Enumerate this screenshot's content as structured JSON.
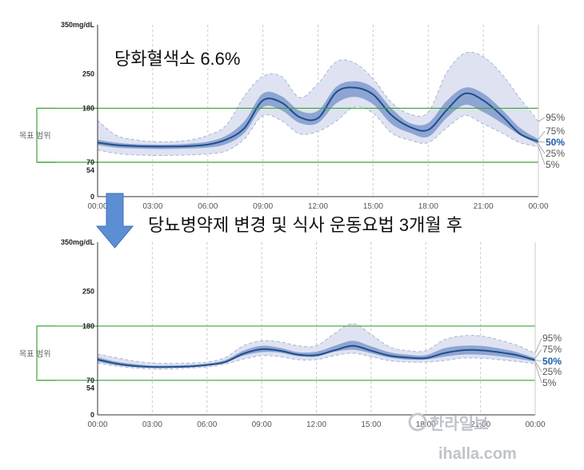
{
  "headline_top": "당화혈색소 6.6%",
  "headline_mid": "당뇨병약제 변경 및 식사 운동요법 3개월 후",
  "target_range_label": "목표 범위",
  "watermark": {
    "korean": "한라일보",
    "url": "ihalla.com"
  },
  "colors": {
    "median": "#1f4f8a",
    "iqr": "#8ea5d3",
    "outer": "#dfe3f1",
    "target": "#3aa43a"
  },
  "chart_data": [
    {
      "type": "area",
      "name": "before",
      "x_ticks": [
        "00:00",
        "03:00",
        "06:00",
        "09:00",
        "12:00",
        "15:00",
        "18:00",
        "21:00",
        "00:00"
      ],
      "y_ticks": [
        0,
        54,
        70,
        180,
        250,
        350
      ],
      "y_tick_labels": [
        "0",
        "54",
        "70",
        "180",
        "250",
        "350mg/dL"
      ],
      "ylim": [
        0,
        350
      ],
      "xlim": [
        0,
        24
      ],
      "target_range": [
        70,
        180
      ],
      "percentile_labels": [
        "95%",
        "75%",
        "50%",
        "25%",
        "5%"
      ],
      "x": [
        0,
        1,
        2,
        3,
        4,
        5,
        6,
        7,
        8,
        9,
        10,
        11,
        12,
        13,
        14,
        15,
        16,
        17,
        18,
        19,
        20,
        21,
        22,
        23,
        24
      ],
      "p5": [
        95,
        88,
        85,
        84,
        84,
        85,
        87,
        93,
        118,
        165,
        155,
        128,
        133,
        154,
        183,
        170,
        130,
        115,
        110,
        140,
        165,
        148,
        130,
        110,
        102
      ],
      "p25": [
        105,
        100,
        98,
        97,
        97,
        98,
        100,
        107,
        130,
        182,
        176,
        150,
        150,
        190,
        203,
        188,
        148,
        130,
        122,
        160,
        187,
        172,
        150,
        125,
        107
      ],
      "p50": [
        110,
        105,
        103,
        102,
        102,
        103,
        106,
        116,
        140,
        196,
        192,
        162,
        160,
        213,
        222,
        208,
        166,
        142,
        136,
        176,
        210,
        196,
        165,
        128,
        112
      ],
      "p75": [
        116,
        110,
        107,
        106,
        106,
        108,
        112,
        124,
        154,
        210,
        205,
        175,
        175,
        224,
        235,
        222,
        180,
        150,
        150,
        195,
        222,
        210,
        178,
        140,
        117
      ],
      "p95": [
        155,
        125,
        116,
        112,
        112,
        115,
        125,
        145,
        205,
        245,
        245,
        202,
        230,
        275,
        272,
        240,
        192,
        168,
        172,
        252,
        292,
        285,
        250,
        200,
        153
      ]
    },
    {
      "type": "area",
      "name": "after",
      "x_ticks": [
        "00:00",
        "03:00",
        "06:00",
        "09:00",
        "12:00",
        "15:00",
        "18:00",
        "21:00",
        "00:00"
      ],
      "y_ticks": [
        0,
        54,
        70,
        180,
        250,
        350
      ],
      "y_tick_labels": [
        "0",
        "54",
        "70",
        "180",
        "250",
        "350mg/dL"
      ],
      "ylim": [
        0,
        350
      ],
      "xlim": [
        0,
        24
      ],
      "target_range": [
        70,
        180
      ],
      "percentile_labels": [
        "95%",
        "75%",
        "50%",
        "25%",
        "5%"
      ],
      "x": [
        0,
        1,
        2,
        3,
        4,
        5,
        6,
        7,
        8,
        9,
        10,
        11,
        12,
        13,
        14,
        15,
        16,
        17,
        18,
        19,
        20,
        21,
        22,
        23,
        24
      ],
      "p5": [
        105,
        99,
        95,
        93,
        93,
        95,
        97,
        103,
        113,
        120,
        118,
        112,
        112,
        120,
        125,
        118,
        110,
        107,
        107,
        110,
        115,
        115,
        112,
        108,
        104
      ],
      "p25": [
        108,
        101,
        97,
        96,
        96,
        97,
        100,
        106,
        120,
        127,
        126,
        119,
        118,
        128,
        132,
        125,
        116,
        112,
        112,
        118,
        122,
        122,
        119,
        114,
        108
      ],
      "p50": [
        112,
        104,
        99,
        97,
        97,
        98,
        101,
        107,
        124,
        133,
        130,
        122,
        121,
        131,
        140,
        130,
        120,
        116,
        115,
        125,
        131,
        131,
        127,
        121,
        111
      ],
      "p75": [
        117,
        108,
        103,
        100,
        100,
        101,
        104,
        111,
        130,
        140,
        136,
        127,
        128,
        140,
        150,
        139,
        127,
        122,
        121,
        135,
        140,
        140,
        135,
        127,
        115
      ],
      "p95": [
        123,
        116,
        109,
        105,
        104,
        105,
        107,
        116,
        140,
        150,
        148,
        140,
        140,
        165,
        185,
        163,
        138,
        130,
        130,
        152,
        160,
        160,
        152,
        141,
        125
      ]
    }
  ]
}
